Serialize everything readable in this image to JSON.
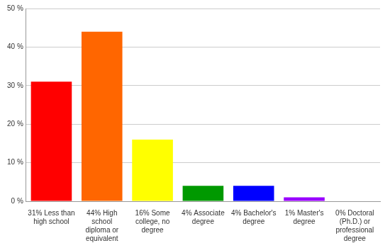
{
  "chart_data": {
    "type": "bar",
    "categories": [
      "31% Less than high school",
      "44% High school diploma or equivalent",
      "16% Some college, no degree",
      "4% Associate degree",
      "4% Bachelor's degree",
      "1% Master's degree",
      "0% Doctoral (Ph.D.) or professional degree"
    ],
    "values": [
      31,
      44,
      16,
      4,
      4,
      1,
      0
    ],
    "colors": [
      "#ff0000",
      "#ff6600",
      "#ffff00",
      "#009900",
      "#0000ff",
      "#9900ff",
      "#ff00ff"
    ],
    "ylim": [
      0,
      50
    ],
    "yticks": [
      {
        "value": 0,
        "label": "0 %"
      },
      {
        "value": 10,
        "label": "10 %"
      },
      {
        "value": 20,
        "label": "20 %"
      },
      {
        "value": 30,
        "label": "30 %"
      },
      {
        "value": 40,
        "label": "40 %"
      },
      {
        "value": 50,
        "label": "50 %"
      }
    ],
    "grid": true
  }
}
